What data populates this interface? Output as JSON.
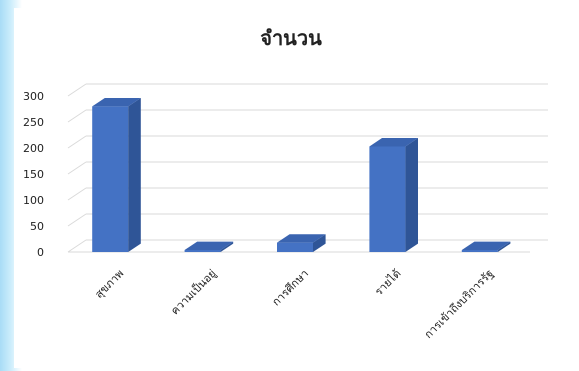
{
  "chart_data": {
    "type": "bar",
    "title": "จำนวน",
    "categories": [
      "สุขภาพ",
      "ความเป็นอยู่",
      "การศึกษา",
      "รายได้",
      "การเข้าถึงบริการรัฐ"
    ],
    "values": [
      280,
      0,
      18,
      203,
      0
    ],
    "ylim": [
      0,
      300
    ],
    "yticks": [
      "0",
      "50",
      "100",
      "150",
      "200",
      "250",
      "300"
    ],
    "grid": true,
    "legend": "none",
    "colors": {
      "bar_front": "#4472c4",
      "bar_side": "#2f5597",
      "bar_top": "#3a64b0",
      "grid": "#d9d9d9",
      "background_edge": "#8fd0f2"
    }
  }
}
